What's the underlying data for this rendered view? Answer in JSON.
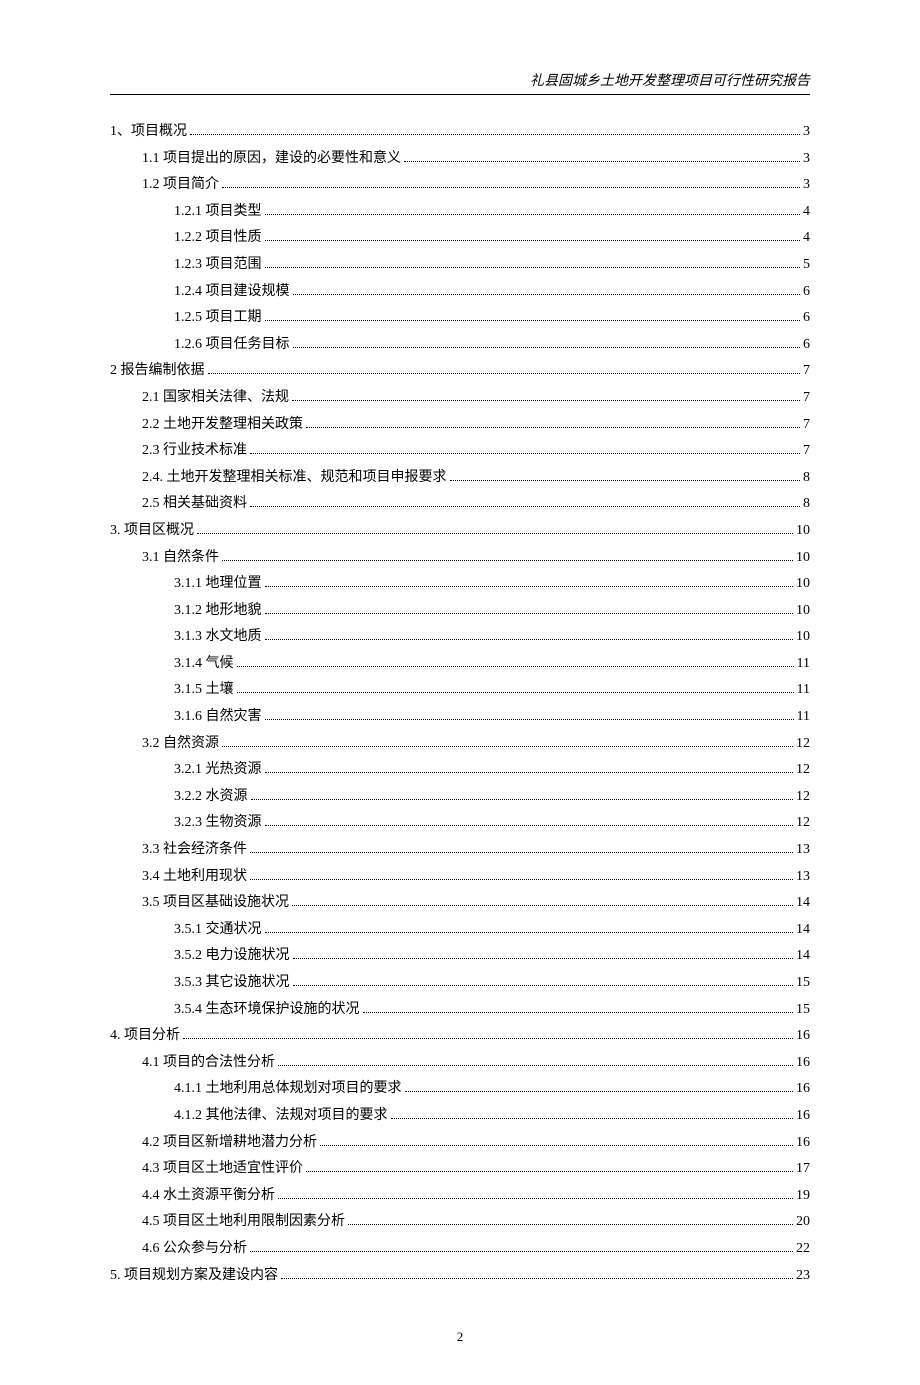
{
  "header": {
    "title": "礼县固城乡土地开发整理项目可行性研究报告"
  },
  "footer": {
    "page_number": "2"
  },
  "toc": {
    "entries": [
      {
        "level": 0,
        "label": "1、项目概况",
        "page": "3"
      },
      {
        "level": 1,
        "label": "1.1 项目提出的原因，建设的必要性和意义",
        "page": "3"
      },
      {
        "level": 1,
        "label": "1.2 项目简介",
        "page": "3"
      },
      {
        "level": 2,
        "label": "1.2.1 项目类型",
        "page": "4"
      },
      {
        "level": 2,
        "label": "1.2.2 项目性质",
        "page": "4"
      },
      {
        "level": 2,
        "label": "1.2.3 项目范围",
        "page": "5"
      },
      {
        "level": 2,
        "label": "1.2.4 项目建设规模",
        "page": "6"
      },
      {
        "level": 2,
        "label": "1.2.5 项目工期",
        "page": "6"
      },
      {
        "level": 2,
        "label": "1.2.6 项目任务目标",
        "page": "6"
      },
      {
        "level": 0,
        "label": "2 报告编制依据",
        "page": "7"
      },
      {
        "level": 1,
        "label": "2.1 国家相关法律、法规",
        "page": "7"
      },
      {
        "level": 1,
        "label": "2.2 土地开发整理相关政策",
        "page": "7"
      },
      {
        "level": 1,
        "label": "2.3 行业技术标准",
        "page": "7"
      },
      {
        "level": 1,
        "label": "2.4. 土地开发整理相关标准、规范和项目申报要求",
        "page": "8"
      },
      {
        "level": 1,
        "label": "2.5 相关基础资料",
        "page": "8"
      },
      {
        "level": 0,
        "label": "3. 项目区概况",
        "page": "10"
      },
      {
        "level": 1,
        "label": "3.1 自然条件",
        "page": "10"
      },
      {
        "level": 2,
        "label": "3.1.1 地理位置",
        "page": "10"
      },
      {
        "level": 2,
        "label": "3.1.2 地形地貌",
        "page": "10"
      },
      {
        "level": 2,
        "label": "3.1.3 水文地质",
        "page": "10"
      },
      {
        "level": 2,
        "label": "3.1.4 气候",
        "page": "11"
      },
      {
        "level": 2,
        "label": "3.1.5 土壤",
        "page": "11"
      },
      {
        "level": 2,
        "label": "3.1.6 自然灾害",
        "page": "11"
      },
      {
        "level": 1,
        "label": "3.2 自然资源",
        "page": "12"
      },
      {
        "level": 2,
        "label": "3.2.1 光热资源",
        "page": "12"
      },
      {
        "level": 2,
        "label": "3.2.2 水资源",
        "page": "12"
      },
      {
        "level": 2,
        "label": "3.2.3 生物资源",
        "page": "12"
      },
      {
        "level": 1,
        "label": "3.3 社会经济条件",
        "page": "13"
      },
      {
        "level": 1,
        "label": "3.4 土地利用现状",
        "page": "13"
      },
      {
        "level": 1,
        "label": "3.5 项目区基础设施状况",
        "page": "14"
      },
      {
        "level": 2,
        "label": "3.5.1 交通状况",
        "page": "14"
      },
      {
        "level": 2,
        "label": "3.5.2 电力设施状况",
        "page": "14"
      },
      {
        "level": 2,
        "label": "3.5.3 其它设施状况",
        "page": "15"
      },
      {
        "level": 2,
        "label": "3.5.4 生态环境保护设施的状况",
        "page": "15"
      },
      {
        "level": 0,
        "label": "4. 项目分析",
        "page": "16"
      },
      {
        "level": 1,
        "label": "4.1 项目的合法性分析",
        "page": "16"
      },
      {
        "level": 2,
        "label": "4.1.1 土地利用总体规划对项目的要求",
        "page": "16"
      },
      {
        "level": 2,
        "label": "4.1.2 其他法律、法规对项目的要求",
        "page": "16"
      },
      {
        "level": 1,
        "label": "4.2 项目区新增耕地潜力分析",
        "page": "16"
      },
      {
        "level": 1,
        "label": "4.3 项目区土地适宜性评价",
        "page": "17"
      },
      {
        "level": 1,
        "label": "4.4 水土资源平衡分析",
        "page": "19"
      },
      {
        "level": 1,
        "label": "4.5 项目区土地利用限制因素分析",
        "page": "20"
      },
      {
        "level": 1,
        "label": "4.6 公众参与分析",
        "page": "22"
      },
      {
        "level": 0,
        "label": "5. 项目规划方案及建设内容",
        "page": "23"
      }
    ]
  }
}
